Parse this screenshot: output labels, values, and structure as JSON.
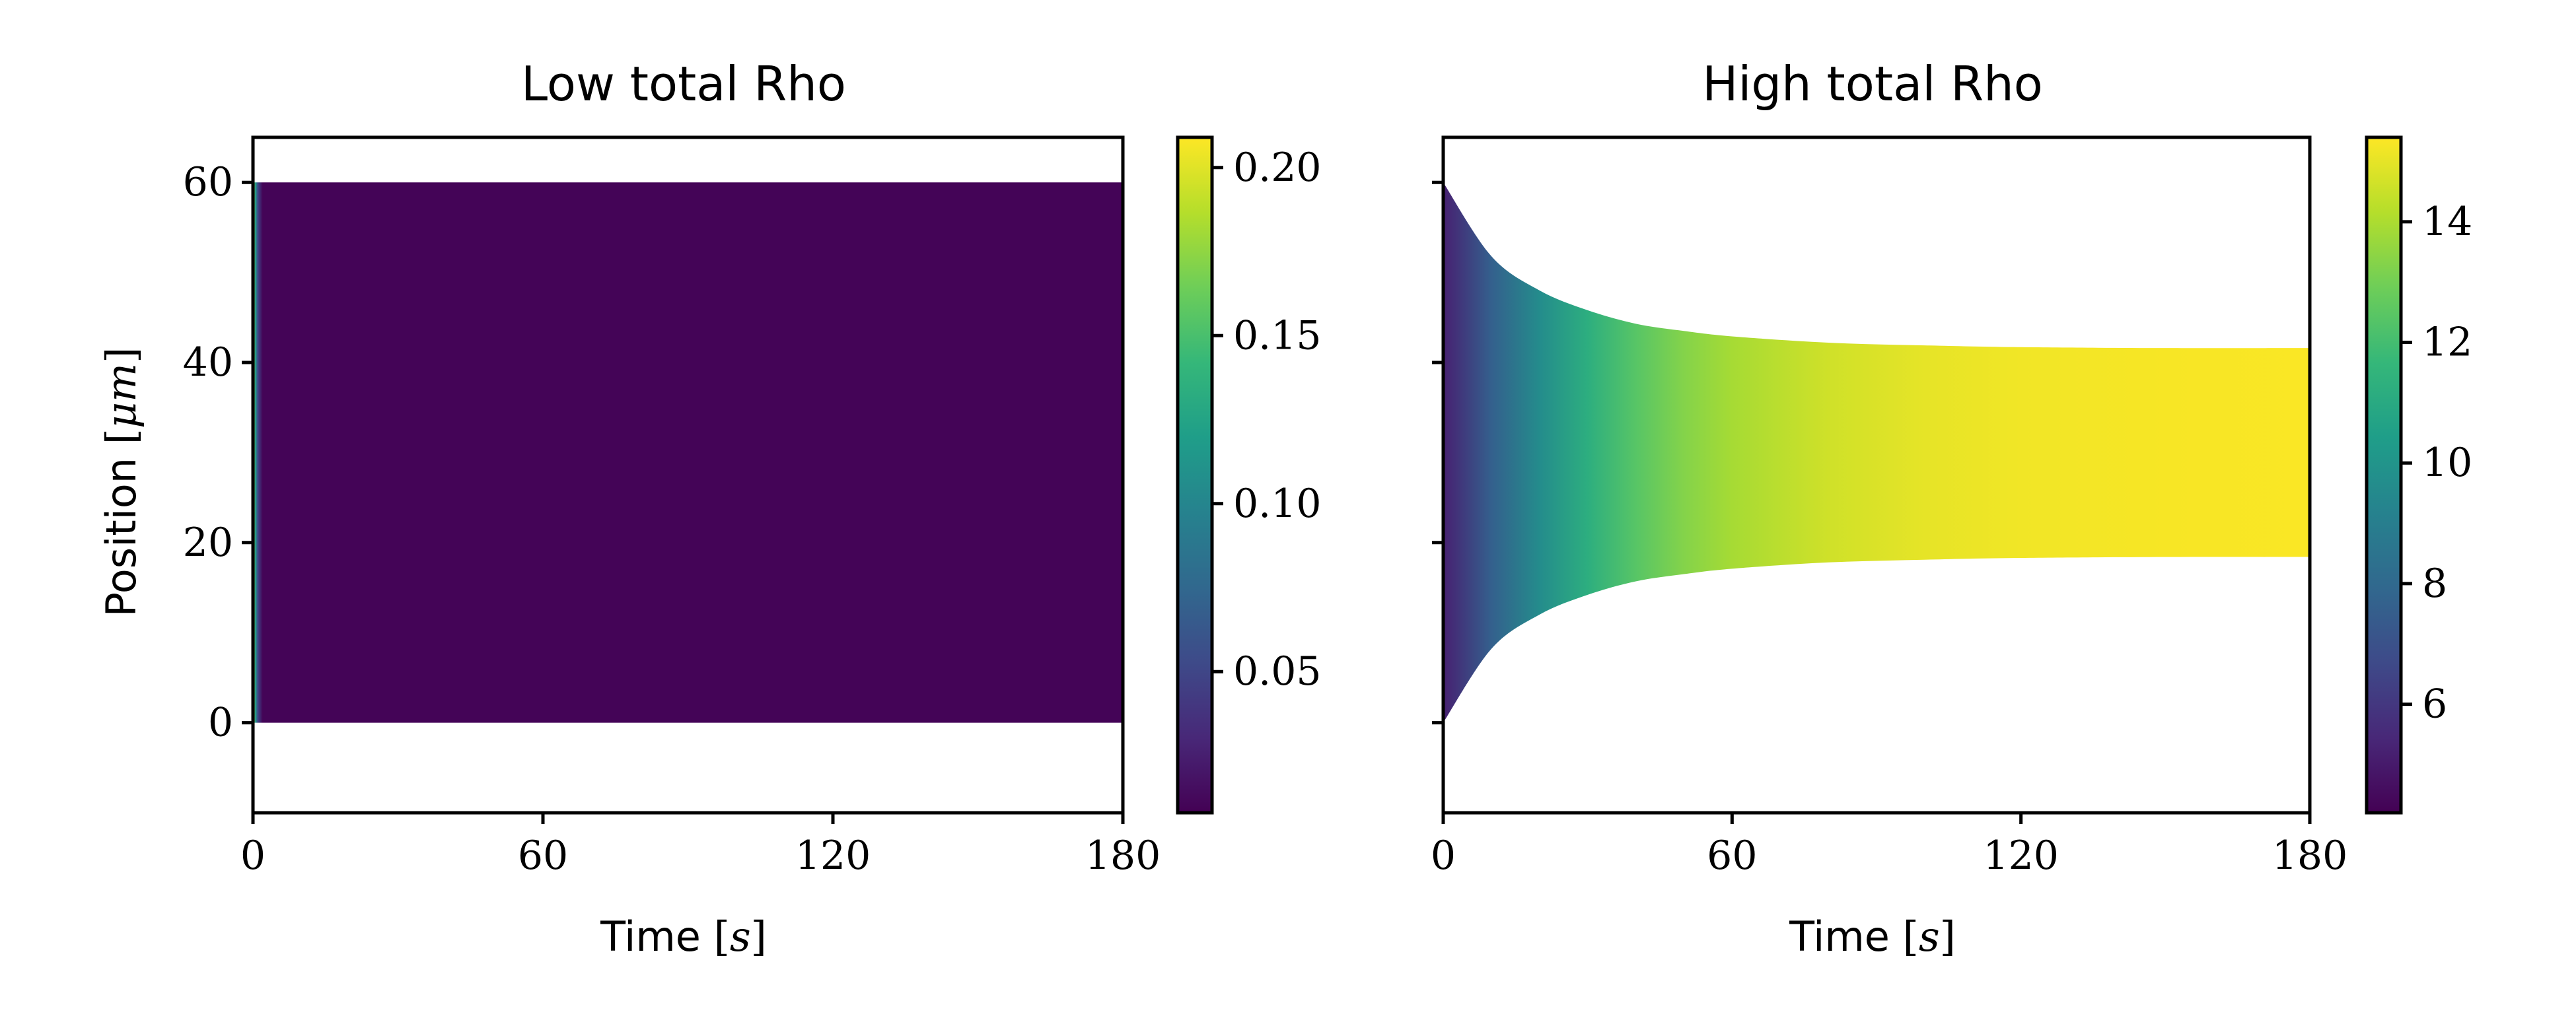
{
  "chart_data": [
    {
      "type": "heatmap",
      "title": "Low total Rho",
      "xlabel": "Time",
      "xlabel_unit": "s",
      "ylabel": "Position",
      "ylabel_unit": "μm",
      "xlim": [
        0,
        180
      ],
      "ylim": [
        -10,
        65
      ],
      "xticks": [
        0,
        60,
        120,
        180
      ],
      "yticks": [
        0,
        20,
        40,
        60
      ],
      "colormap": "viridis",
      "colorbar": {
        "min": 0.008,
        "max": 0.209,
        "ticks": [
          0.05,
          0.1,
          0.15,
          0.2
        ],
        "tick_labels": [
          "0.05",
          "0.10",
          "0.15",
          "0.20"
        ]
      },
      "domain": {
        "t": [
          0,
          30,
          60,
          90,
          120,
          150,
          180
        ],
        "lower": [
          0,
          0,
          0,
          0,
          0,
          0,
          0
        ],
        "upper": [
          60,
          60,
          60,
          60,
          60,
          60,
          60
        ]
      },
      "concentration": {
        "t": [
          0,
          0.5,
          1,
          2,
          180
        ],
        "values": [
          0.2,
          0.12,
          0.05,
          0.01,
          0.01
        ]
      }
    },
    {
      "type": "heatmap",
      "title": "High total Rho",
      "xlabel": "Time",
      "xlabel_unit": "s",
      "xlim": [
        0,
        180
      ],
      "ylim": [
        -10,
        65
      ],
      "xticks": [
        0,
        60,
        120,
        180
      ],
      "yticks": [
        0,
        20,
        40,
        60
      ],
      "colormap": "viridis",
      "colorbar": {
        "min": 4.2,
        "max": 15.4,
        "ticks": [
          6,
          8,
          10,
          12,
          14
        ],
        "tick_labels": [
          "6",
          "8",
          "10",
          "12",
          "14"
        ]
      },
      "domain": {
        "t": [
          0,
          10,
          20,
          30,
          40,
          50,
          60,
          80,
          100,
          120,
          150,
          180
        ],
        "lower": [
          0,
          8.2,
          12.0,
          14.2,
          15.7,
          16.5,
          17.1,
          17.8,
          18.1,
          18.3,
          18.4,
          18.4
        ],
        "upper": [
          60,
          51.8,
          48.0,
          45.8,
          44.3,
          43.5,
          42.9,
          42.2,
          41.9,
          41.7,
          41.6,
          41.6
        ]
      },
      "concentration": {
        "t": [
          0,
          10,
          20,
          30,
          40,
          50,
          60,
          80,
          100,
          120,
          150,
          180
        ],
        "values": [
          5.2,
          7.6,
          9.6,
          11.2,
          12.4,
          13.3,
          13.9,
          14.6,
          15.0,
          15.2,
          15.3,
          15.35
        ]
      }
    }
  ]
}
